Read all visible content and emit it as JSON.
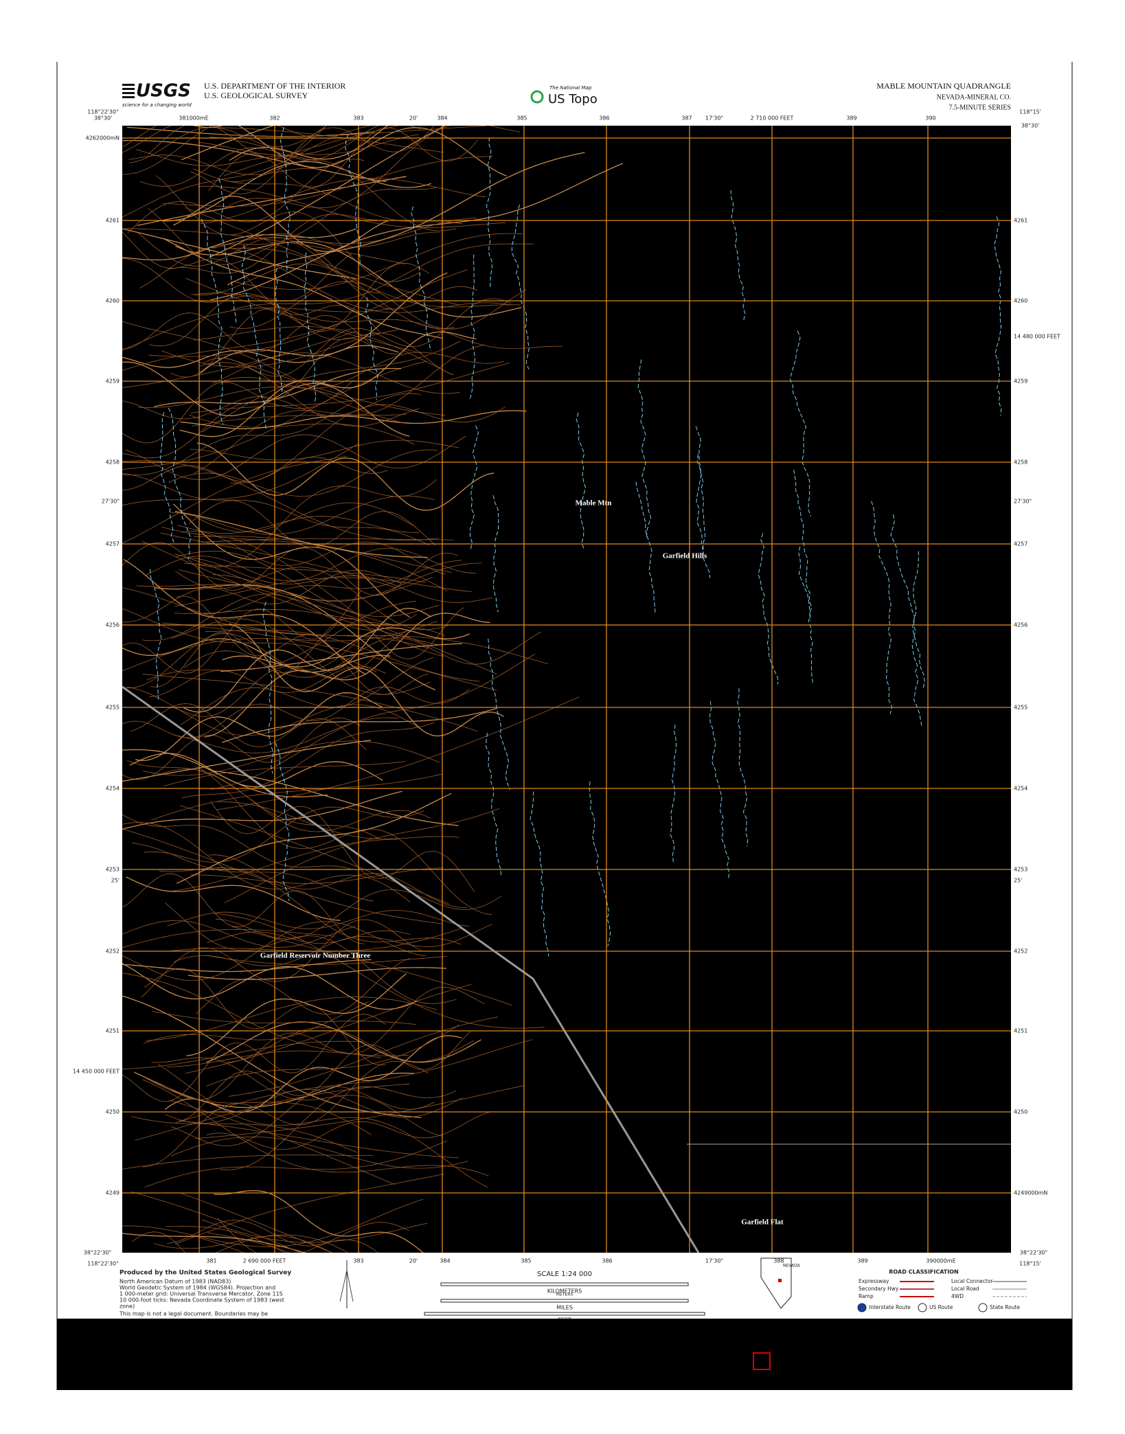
{
  "header": {
    "agency": "U.S. DEPARTMENT OF THE INTERIOR",
    "bureau": "U.S. GEOLOGICAL SURVEY",
    "logo": "USGS",
    "logo_tagline": "science for a changing world",
    "product_small": "The National Map",
    "product": "US Topo",
    "title": "MABLE MOUNTAIN QUADRANGLE",
    "county": "NEVADA-MINERAL CO.",
    "series": "7.5-MINUTE SERIES"
  },
  "map": {
    "corners": {
      "top_left_lat": "38°30'",
      "top_left_lon": "118°22'30\"",
      "top_right_lat": "38°30'",
      "top_right_lon": "118°15'",
      "bottom_left_lat": "38°22'30\"",
      "bottom_left_lon": "118°22'30\"",
      "bottom_right_lat": "38°22'30\"",
      "bottom_right_lon": "118°15'"
    },
    "top_labels": [
      "381000mE",
      "382",
      "383",
      "20'",
      "384",
      "385",
      "386",
      "387",
      "17'30\"",
      "2 710 000 FEET",
      "389",
      "390"
    ],
    "bottom_labels": [
      "381",
      "2 690 000 FEET",
      "383",
      "20'",
      "384",
      "385",
      "386",
      "17'30\"",
      "388",
      "389",
      "390000mE"
    ],
    "left_labels": [
      "4262000mN",
      "4261",
      "4260",
      "4259",
      "4258",
      "27'30\"",
      "4257",
      "4256",
      "4255",
      "4254",
      "4253",
      "25'",
      "4252",
      "4251",
      "14 450 000 FEET",
      "4250",
      "4249"
    ],
    "right_labels": [
      "4261",
      "4260",
      "14 480 000 FEET",
      "4259",
      "4258",
      "27'30\"",
      "4257",
      "4256",
      "4255",
      "4254",
      "4253",
      "25'",
      "4252",
      "4251",
      "4250",
      "4249000mN"
    ],
    "place_names": [
      "Mable Mtn",
      "Garfield Hills",
      "Garfield Reservoir Number Three",
      "Garfield Flat"
    ]
  },
  "footer": {
    "producer": "Produced by the United States Geological Survey",
    "notes": [
      "North American Datum of 1983 (NAD83)",
      "World Geodetic System of 1984 (WGS84). Projection and",
      "1 000-meter grid: Universal Transverse Mercator, Zone 11S",
      "10 000-foot ticks: Nevada Coordinate System of 1983 (west",
      "zone)"
    ],
    "disclaimer": "This map is not a legal document. Boundaries may be",
    "scale": "SCALE 1:24 000",
    "units": [
      "KILOMETERS",
      "METERS",
      "MILES",
      "FEET"
    ],
    "road_title": "ROAD CLASSIFICATION",
    "roads": [
      "Expressway",
      "Secondary Hwy",
      "Ramp",
      "Local Connector",
      "Local Road",
      "4WD"
    ],
    "routes": [
      "Interstate Route",
      "US Route",
      "State Route"
    ],
    "state": "NEVADA"
  }
}
